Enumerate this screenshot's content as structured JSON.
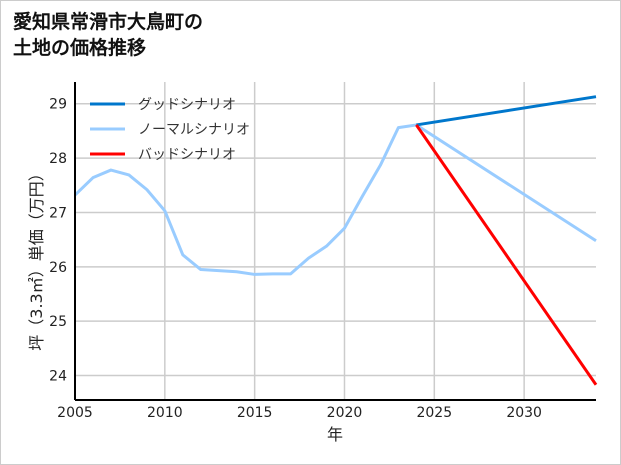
{
  "title_line1": "愛知県常滑市大鳥町の",
  "title_line2": "土地の価格推移",
  "chart_data": {
    "type": "line",
    "title": "愛知県常滑市大鳥町の土地の価格推移",
    "xlabel": "年",
    "ylabel": "坪（3.3㎡）単価（万円）",
    "xlim": [
      2005,
      2034
    ],
    "ylim": [
      23.55,
      29.4
    ],
    "xticks": [
      2005,
      2010,
      2015,
      2020,
      2025,
      2030
    ],
    "yticks": [
      24,
      25,
      26,
      27,
      28,
      29
    ],
    "grid": true,
    "legend_position": "top-left",
    "series": [
      {
        "name": "グッドシナリオ",
        "color": "#0077cc",
        "x": [
          2024,
          2034
        ],
        "y": [
          28.61,
          29.13
        ]
      },
      {
        "name": "ノーマルシナリオ",
        "color": "#99ccff",
        "x": [
          2005,
          2006,
          2007,
          2008,
          2009,
          2010,
          2011,
          2012,
          2013,
          2014,
          2015,
          2016,
          2017,
          2018,
          2019,
          2020,
          2021,
          2022,
          2023,
          2024,
          2034
        ],
        "y": [
          27.32,
          27.64,
          27.78,
          27.69,
          27.42,
          27.03,
          26.22,
          25.95,
          25.93,
          25.91,
          25.86,
          25.87,
          25.87,
          26.16,
          26.38,
          26.71,
          27.3,
          27.87,
          28.56,
          28.61,
          26.48
        ]
      },
      {
        "name": "バッドシナリオ",
        "color": "#ff0000",
        "x": [
          2024,
          2034
        ],
        "y": [
          28.61,
          23.83
        ]
      }
    ]
  }
}
